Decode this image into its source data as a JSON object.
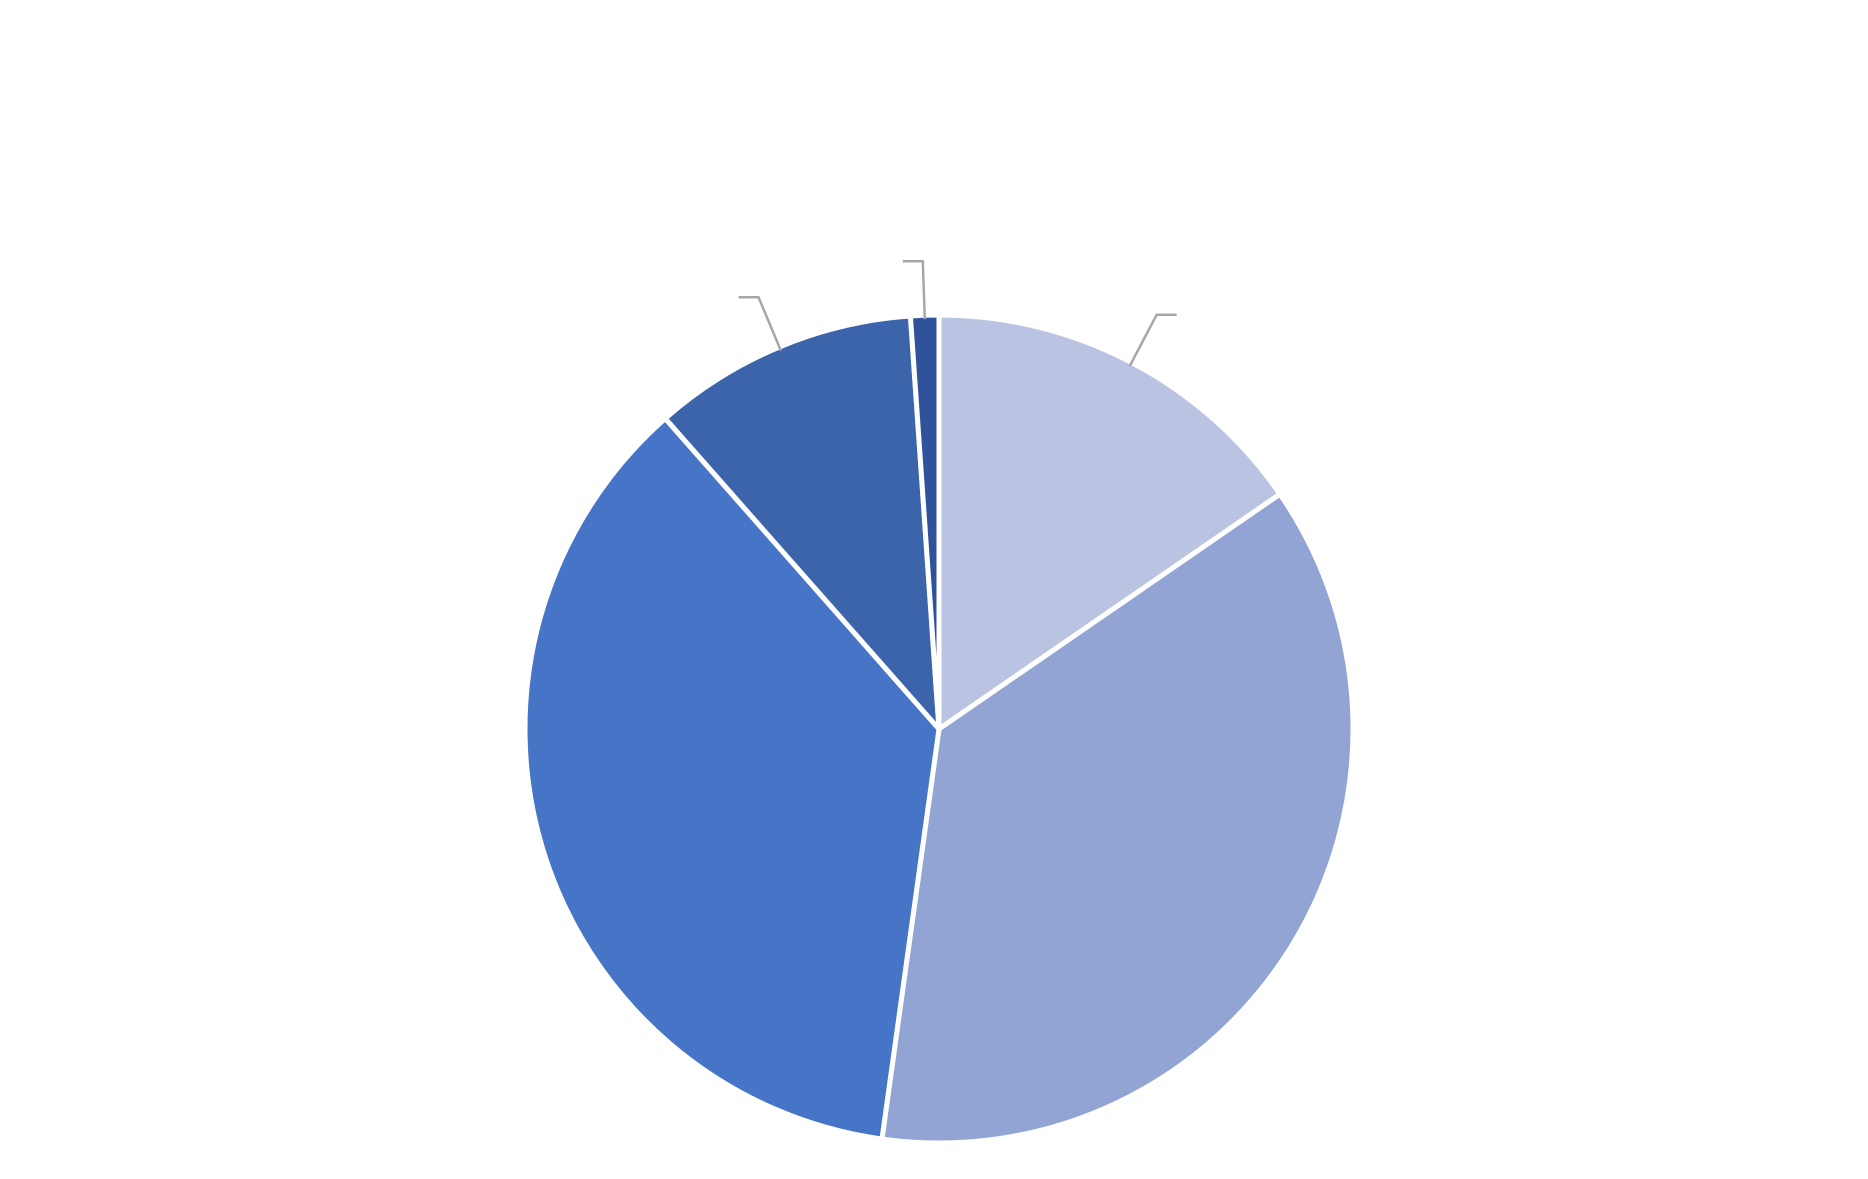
{
  "chart_data": {
    "type": "pie",
    "title": "",
    "start_angle_deg": 0,
    "direction": "clockwise",
    "slices": [
      {
        "label": "",
        "value": 15.4,
        "color": "#bac4e2"
      },
      {
        "label": "",
        "value": 36.8,
        "color": "#91a4d4"
      },
      {
        "label": "",
        "value": 36.3,
        "color": "#4674c6"
      },
      {
        "label": "",
        "value": 10.4,
        "color": "#3c64aa"
      },
      {
        "label": "",
        "value": 1.1,
        "color": "#2f529a"
      }
    ],
    "separator_color": "#ffffff",
    "leader_line_color": "#a6a6a6",
    "leader_lines_for_slices": [
      0,
      3,
      4
    ]
  }
}
